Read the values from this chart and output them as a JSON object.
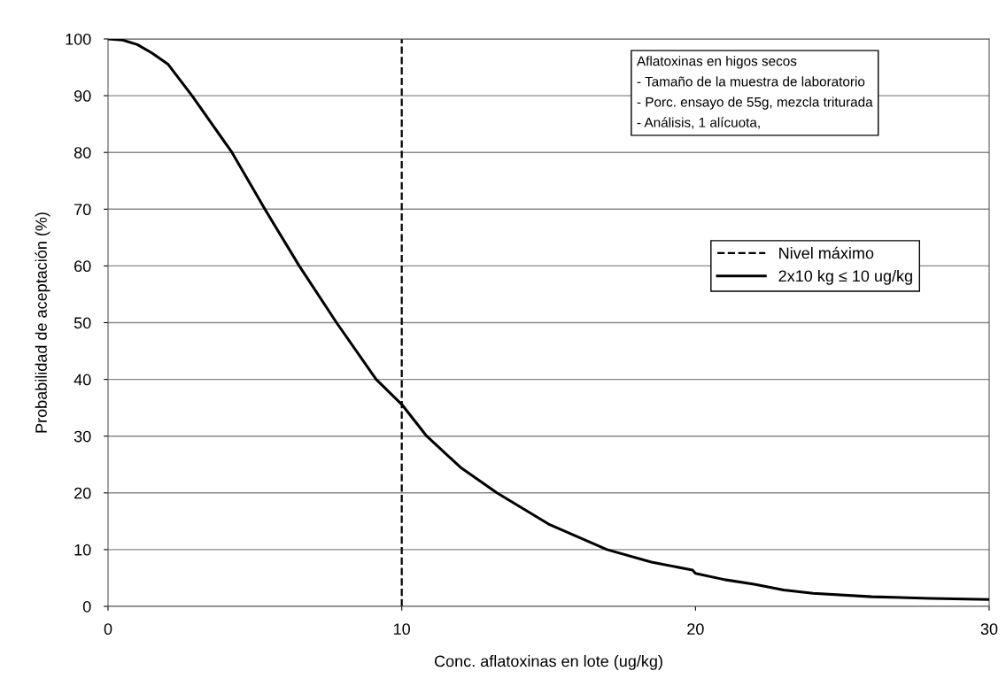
{
  "chart_data": {
    "type": "line",
    "xlabel": "Conc. aflatoxinas en lote (ug/kg)",
    "ylabel": "Probabilidad de aceptación (%)",
    "annotations": [
      "Aflatoxinas en higos secos\n- Tamaño de la muestra de laboratorio\n- Porc. ensayo de 55g, mezcla triturada\n- Análisis, 1 alícuota,"
    ],
    "series": [
      {
        "name": "Nivel máximo",
        "color": "#000000",
        "line_style": "dashed",
        "x": [
          10,
          10
        ],
        "values": [
          0,
          100
        ]
      },
      {
        "name": "2x10 kg ≤ 10 ug/kg",
        "color": "#000000",
        "x": [
          0,
          0.5,
          1,
          1.5,
          2.05,
          2.86,
          4.22,
          5.34,
          6.51,
          7.78,
          9.13,
          10,
          10.85,
          12,
          13.24,
          15,
          16.99,
          18.5,
          19.9,
          20,
          21,
          22,
          23,
          24,
          26,
          28,
          30
        ],
        "values": [
          100,
          99.8,
          99,
          97.5,
          95.5,
          90,
          80,
          70,
          60,
          50,
          40,
          35.6,
          30,
          24.5,
          20,
          14.5,
          10,
          7.8,
          6.4,
          5.8,
          4.7,
          3.9,
          2.9,
          2.3,
          1.7,
          1.4,
          1.2
        ]
      }
    ],
    "xlim": [
      0,
      30
    ],
    "xticks": [
      0,
      10,
      20,
      30
    ],
    "ylim": [
      0,
      100
    ],
    "yticks": [
      0,
      10,
      20,
      30,
      40,
      50,
      60,
      70,
      80,
      90,
      100
    ],
    "grid": "y",
    "legend": "right",
    "line_style": "solid",
    "marker": "none"
  }
}
